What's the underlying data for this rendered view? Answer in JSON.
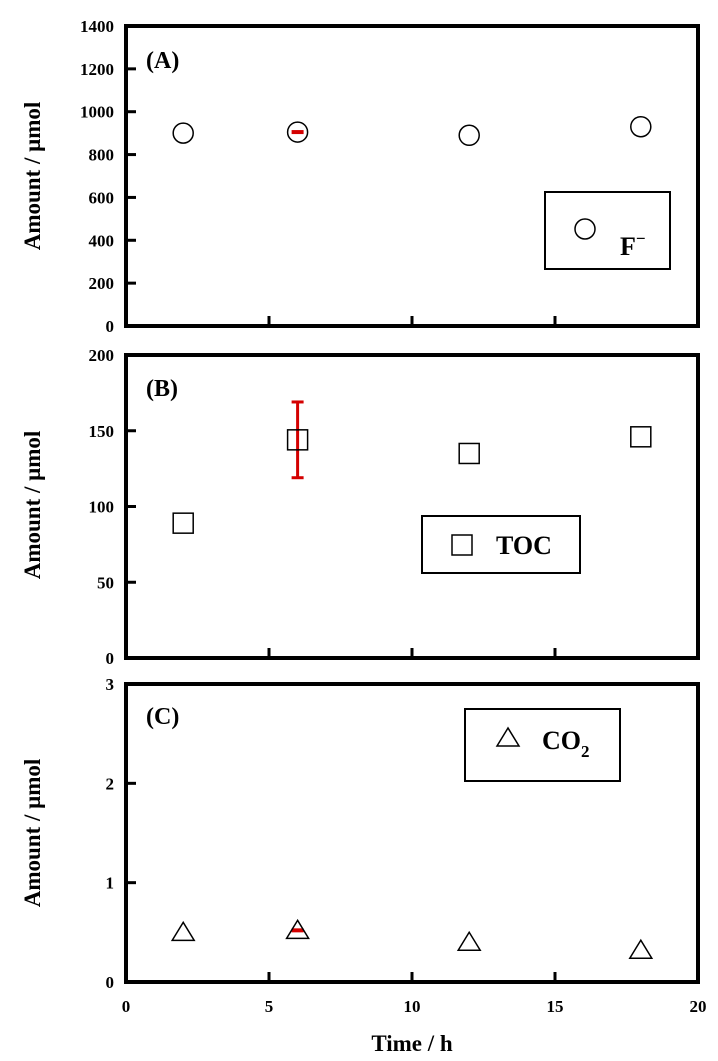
{
  "figure": {
    "xlabel": "Time / h"
  },
  "chart_data": [
    {
      "type": "scatter",
      "panel_tag": "(A)",
      "ylabel": "Amount /  μmol",
      "xlim": [
        0,
        20
      ],
      "ylim": [
        0,
        1400
      ],
      "yticks": [
        "0",
        "200",
        "400",
        "600",
        "800",
        "1000",
        "1200",
        "1400"
      ],
      "xticks": [
        "",
        "",
        "",
        "",
        "",
        ""
      ],
      "marker": "circle",
      "legend": {
        "label_main": "F",
        "label_sup": "−",
        "position": "bottom-right"
      },
      "series": [
        {
          "x": [
            2,
            6,
            12,
            18
          ],
          "y": [
            900,
            905,
            890,
            930
          ]
        }
      ],
      "error_bars": [
        {
          "x": 6,
          "y": 905,
          "low": 895,
          "high": 915
        }
      ],
      "error_color": "#d40000"
    },
    {
      "type": "scatter",
      "panel_tag": "(B)",
      "ylabel": "Amount /  μmol",
      "xlim": [
        0,
        20
      ],
      "ylim": [
        0,
        200
      ],
      "yticks": [
        "0",
        "50",
        "100",
        "150",
        "200"
      ],
      "xticks": [
        "",
        "",
        "",
        "",
        "",
        ""
      ],
      "marker": "square",
      "legend": {
        "label_main": "TOC",
        "label_sup": "",
        "position": "bottom-right"
      },
      "series": [
        {
          "x": [
            2,
            6,
            12,
            18
          ],
          "y": [
            89,
            144,
            135,
            146
          ]
        }
      ],
      "error_bars": [
        {
          "x": 6,
          "y": 144,
          "low": 119,
          "high": 169
        }
      ],
      "error_color": "#d40000"
    },
    {
      "type": "scatter",
      "panel_tag": "(C)",
      "ylabel": "Amount /  μmol",
      "xlim": [
        0,
        20
      ],
      "ylim": [
        0,
        3
      ],
      "yticks": [
        "0",
        "1",
        "2",
        "3"
      ],
      "xticks": [
        "0",
        "5",
        "10",
        "15",
        "20"
      ],
      "marker": "triangle",
      "legend": {
        "label_main": "CO",
        "label_sub": "2",
        "position": "top-right"
      },
      "series": [
        {
          "x": [
            2,
            6,
            12,
            18
          ],
          "y": [
            0.5,
            0.52,
            0.4,
            0.32
          ]
        }
      ],
      "error_bars": [
        {
          "x": 6,
          "y": 0.52,
          "low": 0.5,
          "high": 0.54
        }
      ],
      "error_color": "#d40000"
    }
  ]
}
